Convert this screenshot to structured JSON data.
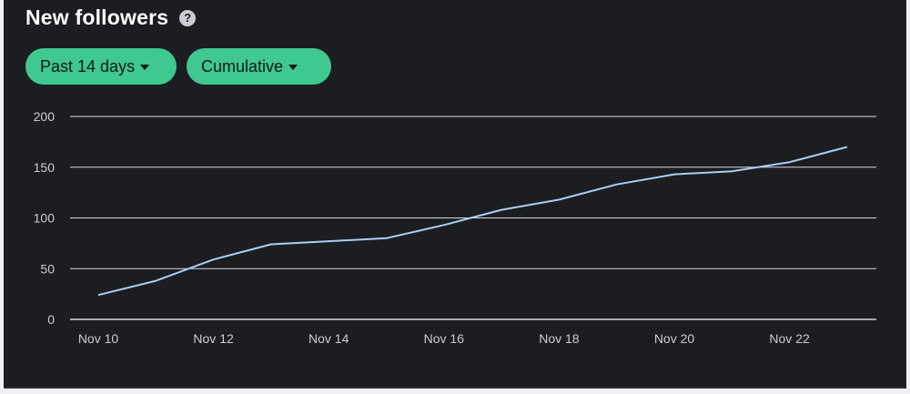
{
  "header": {
    "title": "New followers",
    "help_icon": "question-circle-icon"
  },
  "filters": {
    "range_label": "Past 14 days",
    "mode_label": "Cumulative",
    "accent_color": "#3fc88f"
  },
  "chart_data": {
    "type": "line",
    "title": "",
    "xlabel": "",
    "ylabel": "",
    "x": [
      "Nov 10",
      "Nov 11",
      "Nov 12",
      "Nov 13",
      "Nov 14",
      "Nov 15",
      "Nov 16",
      "Nov 17",
      "Nov 18",
      "Nov 19",
      "Nov 20",
      "Nov 21",
      "Nov 22",
      "Nov 23"
    ],
    "x_tick_labels": [
      "Nov 10",
      "Nov 12",
      "Nov 14",
      "Nov 16",
      "Nov 18",
      "Nov 20",
      "Nov 22"
    ],
    "y_ticks": [
      0,
      50,
      100,
      150,
      200
    ],
    "ylim": [
      0,
      200
    ],
    "grid": true,
    "series": [
      {
        "values": [
          24,
          38,
          59,
          74,
          77,
          80,
          93,
          108,
          118,
          133,
          143,
          146,
          155,
          170
        ],
        "color": "#a9cef5"
      }
    ]
  }
}
